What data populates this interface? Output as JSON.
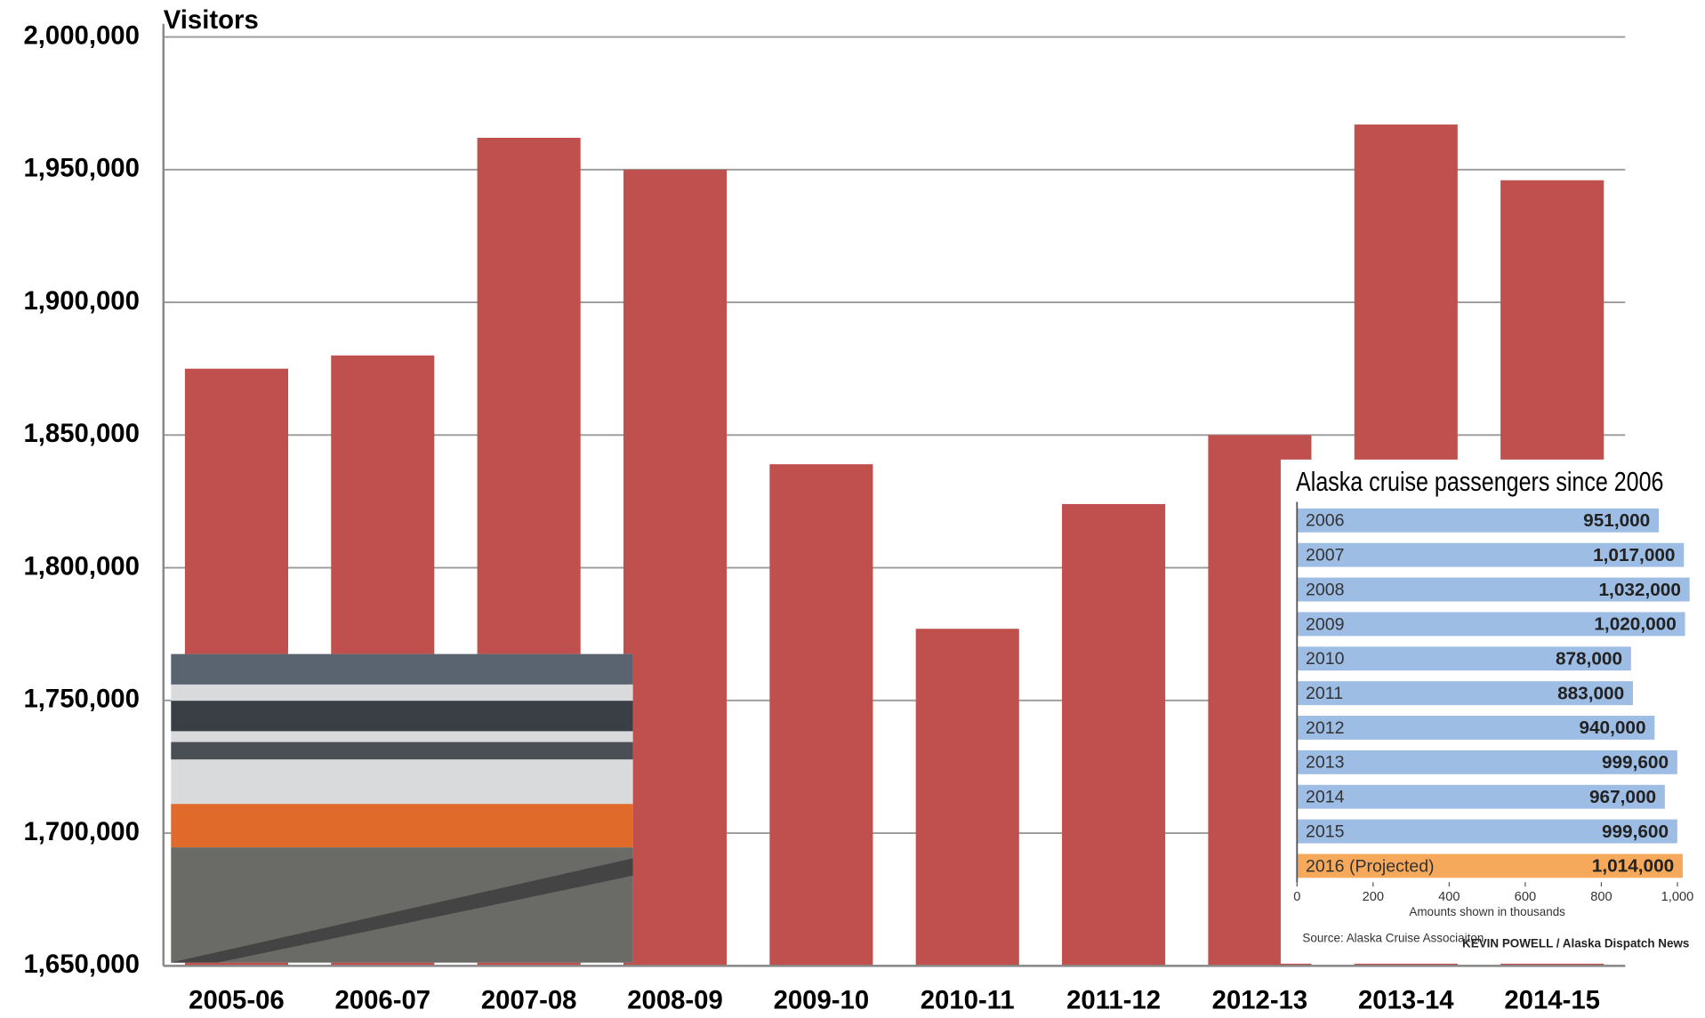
{
  "chart_data": [
    {
      "type": "bar",
      "title": "Visitors",
      "categories": [
        "2005-06",
        "2006-07",
        "2007-08",
        "2008-09",
        "2009-10",
        "2010-11",
        "2011-12",
        "2012-13",
        "2013-14",
        "2014-15"
      ],
      "values": [
        1875000,
        1880000,
        1962000,
        1950000,
        1839000,
        1777000,
        1824000,
        1850000,
        1967000,
        1946000
      ],
      "color": "#c0504d",
      "ylim": [
        1650000,
        2000000
      ],
      "yticks": [
        {
          "value": 1650000,
          "label": "1,650,000"
        },
        {
          "value": 1700000,
          "label": "1,700,000"
        },
        {
          "value": 1750000,
          "label": "1,750,000"
        },
        {
          "value": 1800000,
          "label": "1,800,000"
        },
        {
          "value": 1850000,
          "label": "1,850,000"
        },
        {
          "value": 1900000,
          "label": "1,900,000"
        },
        {
          "value": 1950000,
          "label": "1,950,000"
        },
        {
          "value": 2000000,
          "label": "2,000,000"
        }
      ],
      "grid": true
    },
    {
      "type": "barh",
      "title": "Alaska cruise passengers since 2006",
      "categories": [
        "2006",
        "2007",
        "2008",
        "2009",
        "2010",
        "2011",
        "2012",
        "2013",
        "2014",
        "2015",
        "2016 (Projected)"
      ],
      "values": [
        951,
        1017,
        1032,
        1020,
        878,
        883,
        940,
        999.6,
        967,
        999.6,
        1014
      ],
      "value_labels": [
        "951,000",
        "1,017,000",
        "1,032,000",
        "1,020,000",
        "878,000",
        "883,000",
        "940,000",
        "999,600",
        "967,000",
        "999,600",
        "1,014,000"
      ],
      "colors": [
        "#9dbde4",
        "#9dbde4",
        "#9dbde4",
        "#9dbde4",
        "#9dbde4",
        "#9dbde4",
        "#9dbde4",
        "#9dbde4",
        "#9dbde4",
        "#9dbde4",
        "#f6a95a"
      ],
      "xlim": [
        0,
        1000
      ],
      "xticks": [
        0,
        200,
        400,
        600,
        800,
        {
          "value": 1000,
          "label": "1,000"
        }
      ],
      "xlabel": "Amounts shown in thousands",
      "source": "Source: Alaska Cruise Associaiton",
      "credit": "KEVIN POWELL / Alaska Dispatch News"
    }
  ]
}
